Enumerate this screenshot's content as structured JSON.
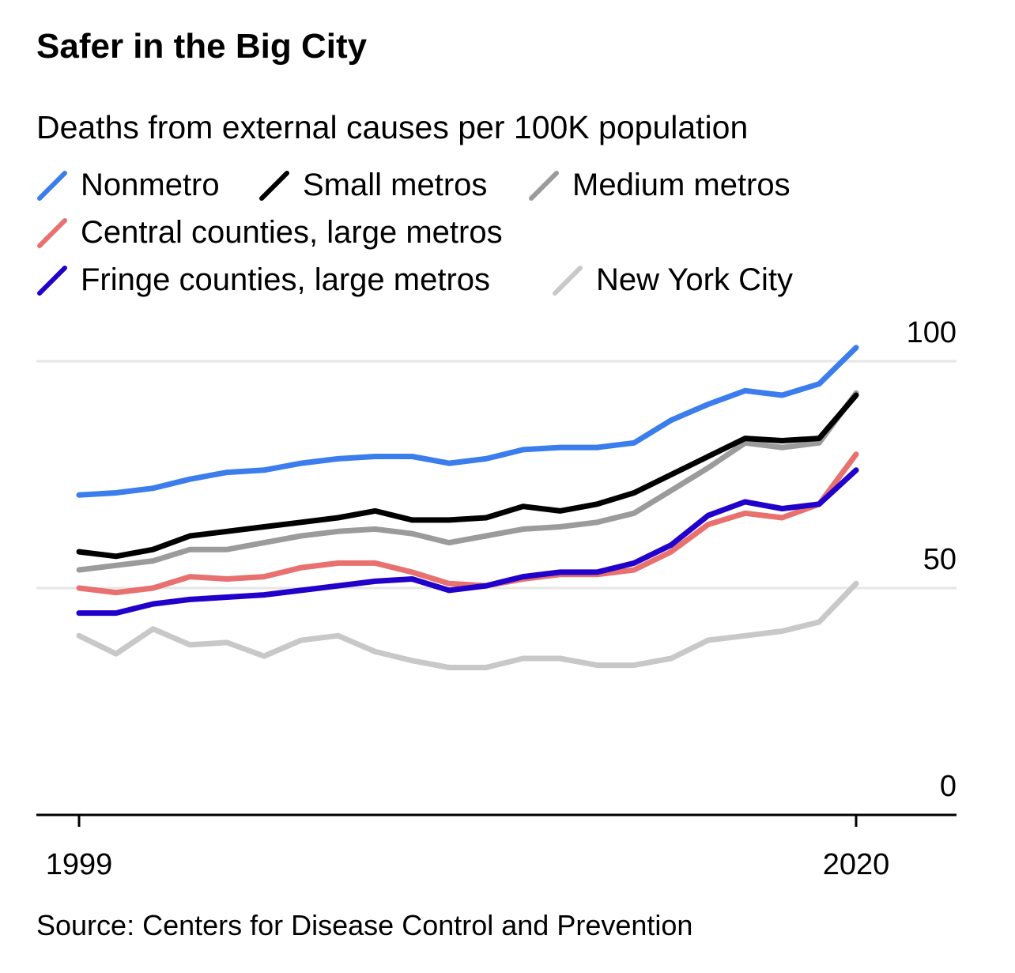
{
  "chart_data": {
    "type": "line",
    "title": "Safer in the Big City",
    "subtitle": "Deaths from external causes per 100K population",
    "source": "Source: Centers for Disease Control and Prevention",
    "x": [
      1999,
      2000,
      2001,
      2002,
      2003,
      2004,
      2005,
      2006,
      2007,
      2008,
      2009,
      2010,
      2011,
      2012,
      2013,
      2014,
      2015,
      2016,
      2017,
      2018,
      2019,
      2020
    ],
    "x_tick_labels": [
      "1999",
      "2020"
    ],
    "y_tick_labels": [
      "0",
      "50",
      "100"
    ],
    "ylim": [
      0,
      100
    ],
    "grid": true,
    "legend_placement": "top",
    "series": [
      {
        "name": "Nonmetro",
        "color": "#3b7ded",
        "values": [
          70.5,
          71.0,
          72.0,
          74.0,
          75.5,
          76.0,
          77.5,
          78.5,
          79.0,
          79.0,
          77.5,
          78.5,
          80.5,
          81.0,
          81.0,
          82.0,
          87.0,
          90.5,
          93.5,
          92.5,
          95.0,
          103.0
        ]
      },
      {
        "name": "Small metros",
        "color": "#000000",
        "values": [
          58.0,
          57.0,
          58.5,
          61.5,
          62.5,
          63.5,
          64.5,
          65.5,
          67.0,
          65.0,
          65.0,
          65.5,
          68.0,
          67.0,
          68.5,
          71.0,
          75.0,
          79.0,
          83.0,
          82.5,
          83.0,
          92.5
        ]
      },
      {
        "name": "Medium metros",
        "color": "#9b9b9b",
        "values": [
          54.0,
          55.0,
          56.0,
          58.5,
          58.5,
          60.0,
          61.5,
          62.5,
          63.0,
          62.0,
          60.0,
          61.5,
          63.0,
          63.5,
          64.5,
          66.5,
          71.5,
          76.5,
          82.0,
          81.0,
          82.0,
          93.0
        ]
      },
      {
        "name": "Central counties, large metros",
        "color": "#e8716f",
        "values": [
          50.0,
          49.0,
          50.0,
          52.5,
          52.0,
          52.5,
          54.5,
          55.5,
          55.5,
          53.5,
          51.0,
          50.5,
          52.0,
          53.0,
          53.0,
          54.0,
          58.0,
          64.0,
          66.5,
          65.5,
          68.5,
          79.5
        ]
      },
      {
        "name": "Fringe counties, large metros",
        "color": "#2200cc",
        "values": [
          44.5,
          44.5,
          46.5,
          47.5,
          48.0,
          48.5,
          49.5,
          50.5,
          51.5,
          52.0,
          49.5,
          50.5,
          52.5,
          53.5,
          53.5,
          55.5,
          59.5,
          66.0,
          69.0,
          67.5,
          68.5,
          76.0
        ]
      },
      {
        "name": "New York City",
        "color": "#c8c8c8",
        "values": [
          39.5,
          35.5,
          41.0,
          37.5,
          38.0,
          35.0,
          38.5,
          39.5,
          36.0,
          34.0,
          32.5,
          32.5,
          34.5,
          34.5,
          33.0,
          33.0,
          34.5,
          38.5,
          39.5,
          40.5,
          42.5,
          51.0
        ]
      }
    ]
  }
}
